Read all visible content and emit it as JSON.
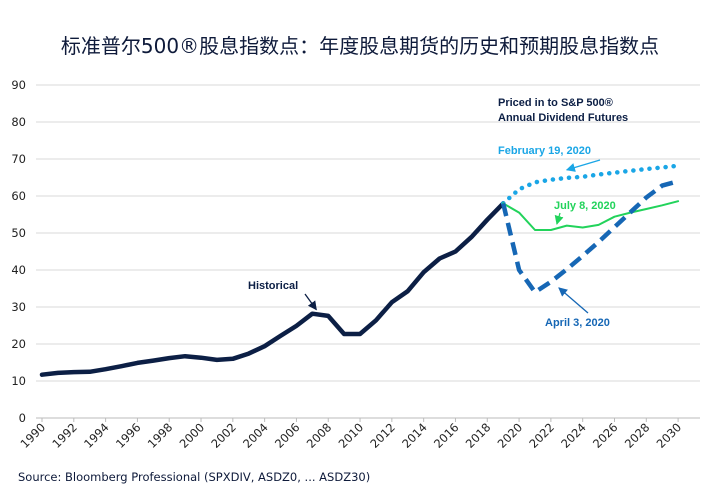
{
  "title": "标准普尔500®股息指数点：年度股息期货的历史和预期股息指数点",
  "source": "Source: Bloomberg Professional (SPXDIV, ASDZ0, ... ASDZ30)",
  "chart_data": {
    "type": "line",
    "title": "标准普尔500®股息指数点：年度股息期货的历史和预期股息指数点",
    "xlabel": "",
    "ylabel": "",
    "xlim": [
      1990,
      2031
    ],
    "ylim": [
      0,
      90
    ],
    "yticks": [
      0,
      10,
      20,
      30,
      40,
      50,
      60,
      70,
      80,
      90
    ],
    "xticks": [
      1990,
      1992,
      1994,
      1996,
      1998,
      2000,
      2002,
      2004,
      2006,
      2008,
      2010,
      2012,
      2014,
      2016,
      2018,
      2020,
      2022,
      2024,
      2026,
      2028,
      2030
    ],
    "grid": true,
    "legend_title": "Priced in to S&P 500® Annual Dividend Futures",
    "series": [
      {
        "name": "Historical",
        "color": "#0c1f45",
        "style": "solid-thick",
        "x": [
          1990,
          1991,
          1992,
          1993,
          1994,
          1995,
          1996,
          1997,
          1998,
          1999,
          2000,
          2001,
          2002,
          2003,
          2004,
          2005,
          2006,
          2007,
          2008,
          2009,
          2010,
          2011,
          2012,
          2013,
          2014,
          2015,
          2016,
          2017,
          2018,
          2019
        ],
        "values": [
          11.7,
          12.2,
          12.4,
          12.5,
          13.2,
          14.0,
          14.9,
          15.5,
          16.2,
          16.7,
          16.3,
          15.7,
          16.0,
          17.4,
          19.4,
          22.2,
          24.9,
          28.2,
          27.6,
          22.7,
          22.7,
          26.4,
          31.3,
          34.3,
          39.4,
          43.1,
          45.0,
          48.9,
          53.6,
          58.0
        ]
      },
      {
        "name": "February 19, 2020",
        "color": "#1aa6e6",
        "style": "dotted",
        "x": [
          2019,
          2020,
          2021,
          2022,
          2023,
          2024,
          2025,
          2026,
          2027,
          2028,
          2029,
          2030
        ],
        "values": [
          58.0,
          61.8,
          63.7,
          64.4,
          64.9,
          65.2,
          65.8,
          66.3,
          66.8,
          67.3,
          67.7,
          68.2
        ]
      },
      {
        "name": "July 8, 2020",
        "color": "#22d35b",
        "style": "solid-thin",
        "x": [
          2019,
          2020,
          2021,
          2022,
          2023,
          2024,
          2025,
          2026,
          2027,
          2028,
          2029,
          2030
        ],
        "values": [
          58.0,
          55.5,
          50.8,
          50.8,
          52.0,
          51.5,
          52.2,
          54.4,
          55.5,
          56.5,
          57.5,
          58.6
        ]
      },
      {
        "name": "April 3, 2020",
        "color": "#1667b5",
        "style": "dashed-thick",
        "x": [
          2019,
          2020,
          2021,
          2022,
          2023,
          2024,
          2025,
          2026,
          2027,
          2028,
          2029,
          2030
        ],
        "values": [
          58.0,
          40.0,
          34.0,
          36.8,
          40.2,
          43.8,
          47.6,
          51.6,
          55.6,
          59.6,
          62.8,
          64.0
        ]
      }
    ],
    "annotations": [
      {
        "text": "Historical",
        "series": "Historical"
      },
      {
        "text": "February 19, 2020",
        "series": "February 19, 2020"
      },
      {
        "text": "July 8, 2020",
        "series": "July 8, 2020"
      },
      {
        "text": "April 3, 2020",
        "series": "April 3, 2020"
      }
    ]
  }
}
